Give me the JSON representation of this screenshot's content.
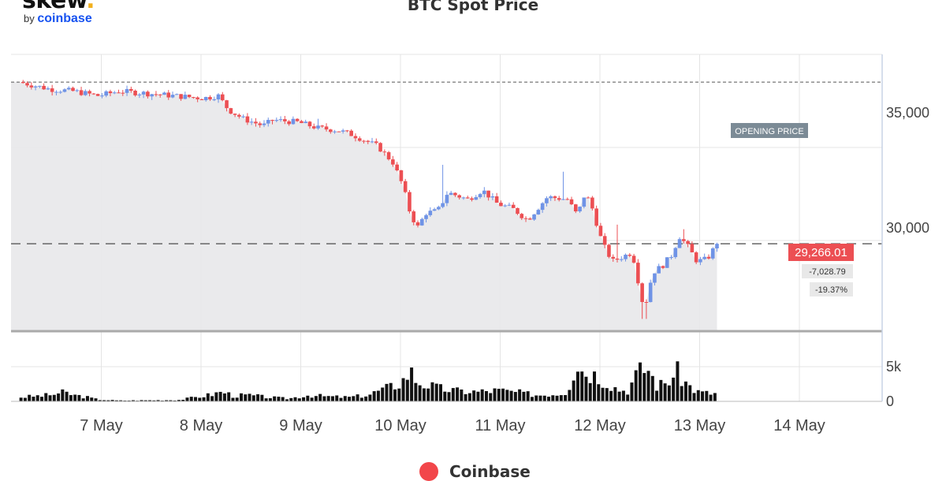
{
  "logo": {
    "main": "skew",
    "dot": ".",
    "by": "by",
    "brand": "coinbase"
  },
  "colors": {
    "up": "#6f93e6",
    "down": "#ec4f53",
    "volume": "#111111",
    "current_tag": "#ec4f53",
    "opening_tag": "#7c8b96",
    "legend": "#f2464a"
  },
  "chart_data": {
    "type": "candlestick",
    "title": "BTC Spot Price",
    "x_axis": {
      "tick_labels": [
        "7 May",
        "8 May",
        "9 May",
        "10 May",
        "11 May",
        "12 May",
        "13 May",
        "14 May"
      ]
    },
    "y_axis": {
      "ylim": [
        25500,
        37500
      ],
      "tick_values": [
        30000,
        35000
      ],
      "tick_labels": [
        "30,000",
        "35,000"
      ]
    },
    "volume_axis": {
      "ylim": [
        0,
        9000
      ],
      "tick_values": [
        0,
        5000
      ],
      "tick_labels": [
        "0",
        "5k"
      ]
    },
    "opening_price": {
      "label": "OPENING PRICE",
      "value": 36295
    },
    "current_price": {
      "label": "29,266.01",
      "value": 29266.01
    },
    "change": {
      "absolute": "-7,028.79",
      "percent": "-19.37%"
    },
    "series": [
      {
        "name": "Coinbase",
        "kind": "hourly OHLC"
      }
    ],
    "close_path": [
      [
        6.0,
        36300
      ],
      [
        6.3,
        36000
      ],
      [
        6.55,
        35900
      ],
      [
        6.8,
        35700
      ],
      [
        7.0,
        35900
      ],
      [
        7.3,
        35800
      ],
      [
        7.55,
        35700
      ],
      [
        7.85,
        35600
      ],
      [
        8.0,
        35700
      ],
      [
        8.1,
        35100
      ],
      [
        8.25,
        34700
      ],
      [
        8.45,
        34400
      ],
      [
        8.55,
        34650
      ],
      [
        8.8,
        34550
      ],
      [
        9.0,
        34300
      ],
      [
        9.2,
        34200
      ],
      [
        9.35,
        34000
      ],
      [
        9.6,
        33500
      ],
      [
        9.75,
        32800
      ],
      [
        9.85,
        31800
      ],
      [
        9.93,
        30500
      ],
      [
        10.0,
        30000
      ],
      [
        10.08,
        30600
      ],
      [
        10.2,
        30700
      ],
      [
        10.3,
        31500
      ],
      [
        10.5,
        31200
      ],
      [
        10.65,
        31600
      ],
      [
        10.8,
        31000
      ],
      [
        10.95,
        30800
      ],
      [
        11.1,
        30300
      ],
      [
        11.3,
        31300
      ],
      [
        11.5,
        31200
      ],
      [
        11.6,
        30500
      ],
      [
        11.68,
        31500
      ],
      [
        11.75,
        30800
      ],
      [
        11.85,
        29300
      ],
      [
        11.95,
        28500
      ],
      [
        12.05,
        28700
      ],
      [
        12.15,
        28900
      ],
      [
        12.25,
        26800
      ],
      [
        12.3,
        26800
      ],
      [
        12.35,
        28000
      ],
      [
        12.45,
        28300
      ],
      [
        12.55,
        28800
      ],
      [
        12.62,
        29600
      ],
      [
        12.7,
        29200
      ],
      [
        12.8,
        28500
      ],
      [
        12.9,
        28600
      ],
      [
        13.0,
        29266
      ]
    ],
    "wick_spikes": [
      [
        9.0,
        34700
      ],
      [
        10.25,
        32700
      ],
      [
        11.45,
        32400
      ],
      [
        12.0,
        30100
      ],
      [
        12.27,
        26000
      ],
      [
        12.65,
        29900
      ]
    ],
    "volume_profile": [
      [
        6.0,
        600
      ],
      [
        6.3,
        900
      ],
      [
        6.45,
        1300
      ],
      [
        6.55,
        900
      ],
      [
        6.65,
        700
      ],
      [
        6.8,
        250
      ],
      [
        7.0,
        120
      ],
      [
        7.6,
        200
      ],
      [
        7.9,
        900
      ],
      [
        8.05,
        1400
      ],
      [
        8.15,
        800
      ],
      [
        8.3,
        900
      ],
      [
        8.5,
        600
      ],
      [
        8.7,
        400
      ],
      [
        8.9,
        900
      ],
      [
        9.1,
        700
      ],
      [
        9.3,
        600
      ],
      [
        9.5,
        900
      ],
      [
        9.6,
        1500
      ],
      [
        9.75,
        2200
      ],
      [
        9.85,
        3000
      ],
      [
        9.92,
        4500
      ],
      [
        10.0,
        2800
      ],
      [
        10.2,
        1900
      ],
      [
        10.4,
        1500
      ],
      [
        10.6,
        1400
      ],
      [
        10.8,
        1600
      ],
      [
        11.0,
        1300
      ],
      [
        11.2,
        900
      ],
      [
        11.4,
        1100
      ],
      [
        11.5,
        1400
      ],
      [
        11.55,
        4000
      ],
      [
        11.6,
        5700
      ],
      [
        11.65,
        4500
      ],
      [
        11.75,
        4100
      ],
      [
        11.85,
        3300
      ],
      [
        12.0,
        1800
      ],
      [
        12.1,
        1500
      ],
      [
        12.2,
        4000
      ],
      [
        12.3,
        5000
      ],
      [
        12.4,
        2200
      ],
      [
        12.5,
        2800
      ],
      [
        12.6,
        4200
      ],
      [
        12.7,
        2500
      ],
      [
        12.8,
        1400
      ],
      [
        12.9,
        1200
      ],
      [
        13.0,
        1100
      ]
    ]
  }
}
